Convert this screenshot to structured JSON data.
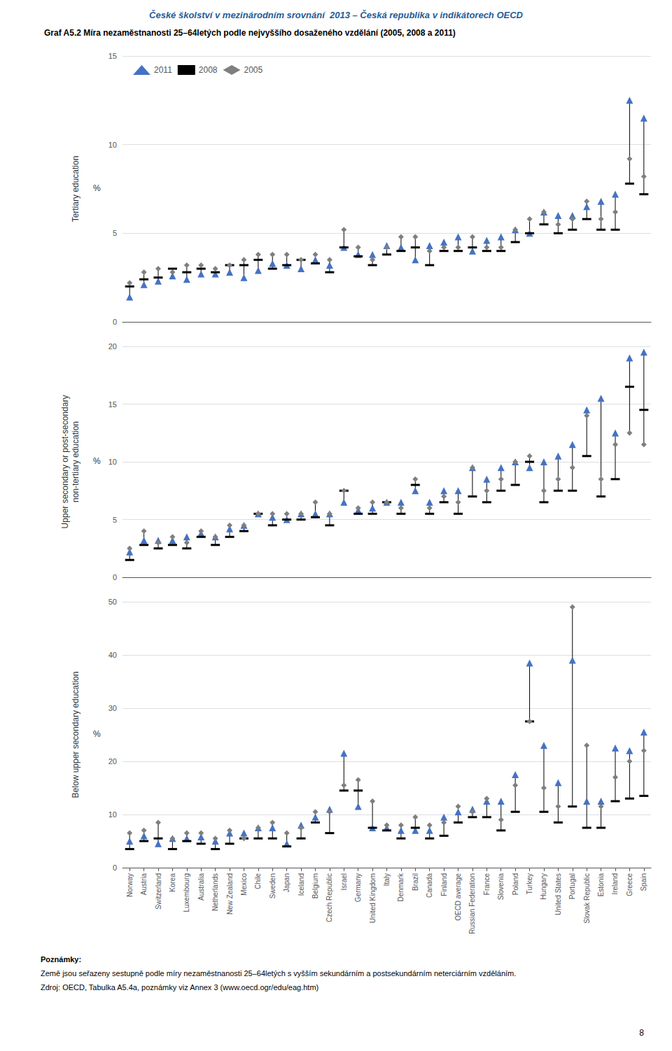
{
  "chart_data": [
    {
      "type": "scatter",
      "title": "České školství v mezinárodním srovnání  2013 – Česká republika v indikátorech OECD",
      "subtitle": "Graf A5.2 Míra nezaměstnanosti 25–64letých podle nejvyššího dosaženého vzdělání (2005, 2008 a 2011)",
      "y_label": "Tertiary education",
      "annotations": [
        "%"
      ],
      "categories": [
        "Norway",
        "Austria",
        "Switzerland",
        "Korea",
        "Luxembourg",
        "Australia",
        "Netherlands",
        "New Zealand",
        "Mexico",
        "Chile",
        "Sweden",
        "Japan",
        "Iceland",
        "Belgium",
        "Czech Republic",
        "Israel",
        "Germany",
        "United Kingdom",
        "Italy",
        "Denmark",
        "Brazil",
        "Canada",
        "Finland",
        "OECD average",
        "Russian Federation",
        "France",
        "Slovenia",
        "Poland",
        "Turkey",
        "Hungary",
        "United States",
        "Portugal",
        "Slovak Republic",
        "Estonia",
        "Ireland",
        "Greece",
        "Spain"
      ],
      "series": [
        {
          "name": "2011",
          "color": "#4472C4",
          "marker": "triangle",
          "values": [
            1.4,
            2.1,
            2.3,
            2.6,
            2.4,
            2.7,
            2.7,
            2.8,
            2.5,
            2.9,
            3.3,
            3.2,
            3.0,
            3.5,
            3.2,
            4.2,
            3.8,
            3.8,
            4.3,
            4.2,
            3.5,
            4.3,
            4.5,
            4.8,
            4.0,
            4.6,
            4.8,
            5.2,
            5.0,
            6.2,
            6.0,
            6.0,
            6.5,
            6.8,
            7.2,
            12.5,
            11.5
          ]
        },
        {
          "name": "2008",
          "color": "#000000",
          "marker": "dash",
          "values": [
            2.0,
            2.4,
            2.5,
            3.0,
            2.8,
            3.0,
            2.8,
            3.2,
            3.2,
            3.5,
            3.0,
            3.2,
            3.5,
            3.3,
            2.8,
            4.2,
            3.7,
            3.2,
            3.8,
            4.0,
            4.2,
            3.2,
            4.0,
            4.0,
            4.2,
            4.0,
            4.0,
            4.5,
            5.0,
            5.5,
            5.0,
            5.2,
            5.8,
            5.2,
            5.2,
            7.8,
            7.2
          ]
        },
        {
          "name": "2005",
          "color": "#7F7F7F",
          "marker": "diamond",
          "values": [
            2.2,
            2.8,
            3.0,
            2.8,
            3.2,
            3.2,
            3.0,
            3.2,
            3.5,
            3.8,
            3.8,
            3.8,
            3.5,
            3.8,
            3.5,
            5.2,
            4.2,
            3.5,
            4.2,
            4.8,
            4.8,
            4.0,
            4.2,
            4.2,
            4.8,
            4.2,
            4.2,
            5.2,
            5.8,
            6.2,
            5.5,
            5.8,
            6.8,
            5.8,
            6.2,
            9.2,
            8.2
          ]
        }
      ],
      "ylim": [
        0,
        15
      ],
      "yticks": [
        0,
        5,
        10,
        15
      ],
      "grid": true,
      "legend": "upper left",
      "tick_labels": "y"
    },
    {
      "type": "scatter",
      "y_label": "Upper secondary or post-secondary\nnon-tertiary education",
      "annotations": [
        "%"
      ],
      "categories": [
        "Norway",
        "Austria",
        "Switzerland",
        "Korea",
        "Luxembourg",
        "Australia",
        "Netherlands",
        "New Zealand",
        "Mexico",
        "Chile",
        "Sweden",
        "Japan",
        "Iceland",
        "Belgium",
        "Czech Republic",
        "Israel",
        "Germany",
        "United Kingdom",
        "Italy",
        "Denmark",
        "Brazil",
        "Canada",
        "Finland",
        "OECD average",
        "Russian Federation",
        "France",
        "Slovenia",
        "Poland",
        "Turkey",
        "Hungary",
        "United States",
        "Portugal",
        "Slovak Republic",
        "Estonia",
        "Ireland",
        "Greece",
        "Spain"
      ],
      "series": [
        {
          "name": "2011",
          "color": "#4472C4",
          "marker": "triangle",
          "values": [
            2.2,
            3.2,
            3.2,
            3.2,
            3.5,
            3.8,
            3.5,
            4.2,
            4.5,
            5.5,
            5.2,
            5.0,
            5.5,
            5.5,
            5.5,
            6.5,
            5.8,
            6.0,
            6.5,
            6.5,
            7.5,
            6.5,
            7.5,
            7.5,
            9.5,
            8.5,
            9.5,
            10.0,
            9.5,
            10.0,
            10.5,
            11.5,
            14.5,
            15.5,
            12.5,
            19.0,
            19.5
          ]
        },
        {
          "name": "2008",
          "color": "#000000",
          "marker": "dash",
          "values": [
            1.5,
            2.8,
            2.5,
            2.8,
            2.5,
            3.5,
            2.8,
            3.5,
            4.0,
            5.5,
            4.5,
            5.0,
            5.0,
            5.2,
            4.5,
            7.5,
            5.5,
            5.5,
            6.5,
            5.5,
            8.0,
            5.5,
            6.5,
            5.5,
            7.0,
            6.5,
            7.5,
            8.0,
            10.0,
            6.5,
            7.5,
            7.5,
            10.5,
            7.0,
            8.5,
            16.5,
            14.5
          ]
        },
        {
          "name": "2005",
          "color": "#7F7F7F",
          "marker": "diamond",
          "values": [
            2.5,
            4.0,
            3.0,
            3.5,
            3.0,
            4.0,
            3.5,
            4.5,
            4.5,
            5.5,
            5.5,
            5.5,
            5.5,
            6.5,
            5.5,
            7.5,
            6.0,
            6.5,
            6.5,
            6.0,
            8.5,
            6.0,
            7.0,
            6.5,
            9.5,
            7.5,
            8.5,
            10.0,
            10.5,
            7.5,
            8.5,
            9.5,
            14.0,
            8.5,
            11.5,
            12.5,
            11.5
          ]
        }
      ],
      "ylim": [
        0,
        20
      ],
      "yticks": [
        0,
        5,
        10,
        15,
        20
      ],
      "grid": true,
      "tick_labels": "y"
    },
    {
      "type": "scatter",
      "y_label": "Below upper secondary education",
      "annotations": [
        "%",
        "Poznámky:",
        "Země jsou seřazeny sestupně podle míry nezaměstnanosti 25–64letých s vyšším sekundárním a postsekundárním neterciárním vzděláním.",
        "Zdroj: OECD, Tabulka A5.4a, poznámky viz Annex 3 (www.oecd.ogr/edu/eag.htm)",
        "8"
      ],
      "categories": [
        "Norway",
        "Austria",
        "Switzerland",
        "Korea",
        "Luxembourg",
        "Australia",
        "Netherlands",
        "New Zealand",
        "Mexico",
        "Chile",
        "Sweden",
        "Japan",
        "Iceland",
        "Belgium",
        "Czech Republic",
        "Israel",
        "Germany",
        "United Kingdom",
        "Italy",
        "Denmark",
        "Brazil",
        "Canada",
        "Finland",
        "OECD average",
        "Russian Federation",
        "France",
        "Slovenia",
        "Poland",
        "Turkey",
        "Hungary",
        "United States",
        "Portugal",
        "Slovak Republic",
        "Estonia",
        "Ireland",
        "Greece",
        "Spain"
      ],
      "series": [
        {
          "name": "2011",
          "color": "#4472C4",
          "marker": "triangle",
          "values": [
            5.0,
            6.0,
            4.5,
            5.5,
            5.5,
            5.8,
            5.0,
            6.5,
            6.5,
            7.5,
            7.5,
            4.5,
            8.0,
            9.5,
            11.0,
            21.5,
            11.5,
            7.5,
            7.5,
            7.0,
            7.0,
            7.0,
            9.5,
            10.5,
            11.0,
            12.5,
            12.5,
            17.5,
            38.5,
            23.0,
            16.0,
            39.0,
            12.5,
            12.5,
            22.5,
            22.0,
            25.5
          ]
        },
        {
          "name": "2008",
          "color": "#000000",
          "marker": "dash",
          "values": [
            3.5,
            5.0,
            5.5,
            3.5,
            5.0,
            4.5,
            3.5,
            4.5,
            5.5,
            5.5,
            5.5,
            4.0,
            5.5,
            8.5,
            6.5,
            14.5,
            14.5,
            7.5,
            7.0,
            5.5,
            7.5,
            5.5,
            6.0,
            8.5,
            9.5,
            9.5,
            7.0,
            10.5,
            27.5,
            10.5,
            8.5,
            11.5,
            7.5,
            7.5,
            12.5,
            13.0,
            13.5
          ]
        },
        {
          "name": "2005",
          "color": "#7F7F7F",
          "marker": "diamond",
          "values": [
            6.5,
            7.0,
            8.5,
            5.5,
            6.5,
            6.5,
            5.5,
            7.0,
            5.5,
            7.5,
            8.5,
            6.5,
            7.5,
            10.5,
            10.5,
            15.5,
            16.5,
            12.5,
            8.0,
            8.0,
            9.5,
            8.0,
            8.5,
            11.5,
            10.5,
            13.0,
            9.0,
            15.5,
            27.5,
            15.0,
            11.5,
            49.0,
            23.0,
            11.5,
            17.0,
            20.0,
            22.0
          ]
        }
      ],
      "ylim": [
        0,
        50
      ],
      "yticks": [
        0,
        10,
        20,
        30,
        40,
        50
      ],
      "grid": true
    }
  ]
}
